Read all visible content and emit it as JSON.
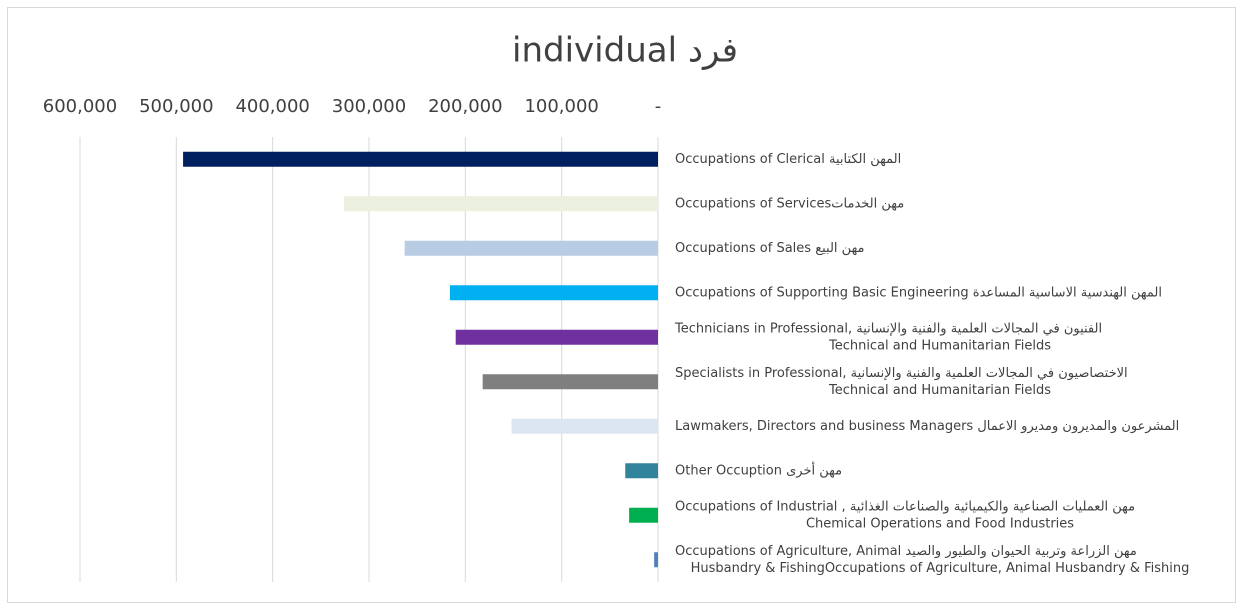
{
  "chart_data": {
    "type": "barh",
    "title": "individual  فرد",
    "categories": [
      [
        "Occupations of Clerical  المهن الكتابية"
      ],
      [
        "Occupations of Servicesمهن الخدمات"
      ],
      [
        "Occupations of Sales  مهن البيع"
      ],
      [
        "Occupations of Supporting Basic Engineering   المهن الهندسية الاساسية المساعدة"
      ],
      [
        "Technicians in Professional,    الفنيون في المجالات العلمية والفنية والإنسانية",
        "Technical and Humanitarian Fields"
      ],
      [
        "Specialists  in Professional,   الاختصاصيون في المجالات العلمية والفنية والإنسانية",
        "Technical and Humanitarian Fields"
      ],
      [
        "Lawmakers, Directors and business Managers المشرعون والمديرون ومديرو الاعمال"
      ],
      [
        "Other Occuption  مهن أخرى"
      ],
      [
        "Occupations of Industrial ,   مهن العمليات الصناعية والكيميائية والصناعات الغذائية",
        "Chemical Operations and Food Industries"
      ],
      [
        "Occupations of Agriculture, Animal  مهن الزراعة وتربية الحيوان والطيور والصيد",
        "Husbandry & FishingOccupations of Agriculture, Animal Husbandry & Fishing"
      ]
    ],
    "values": [
      493000,
      326000,
      263000,
      216000,
      210000,
      182000,
      152000,
      34000,
      30000,
      4000
    ],
    "colors": [
      "#002060",
      "#ebf1de",
      "#b8cce4",
      "#00b0f0",
      "#7030a0",
      "#7f7f7f",
      "#dce6f2",
      "#31849b",
      "#00b050",
      "#4f81bd"
    ],
    "xlim": [
      0,
      600000
    ],
    "x_reversed": true,
    "xticks": [
      {
        "value": 0,
        "label": "-"
      },
      {
        "value": 100000,
        "label": "100,000"
      },
      {
        "value": 200000,
        "label": "200,000"
      },
      {
        "value": 300000,
        "label": "300,000"
      },
      {
        "value": 400000,
        "label": "400,000"
      },
      {
        "value": 500000,
        "label": "500,000"
      },
      {
        "value": 600000,
        "label": "600,000"
      }
    ],
    "grid": true
  }
}
